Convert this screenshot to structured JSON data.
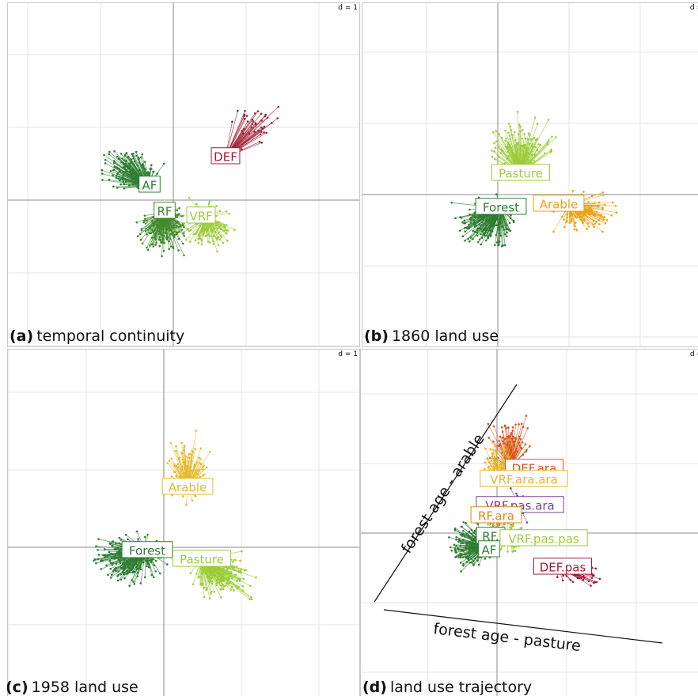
{
  "chart_data": [
    {
      "type": "scatter",
      "panel_letter": "(a)",
      "caption": "temporal continuity",
      "scale_label": "d = 1",
      "grid": true,
      "categories": [
        {
          "label": "AF",
          "color": "#2e7d32"
        },
        {
          "label": "DEF",
          "color": "#9e1b32"
        },
        {
          "label": "RF",
          "color": "#3f8a2a"
        },
        {
          "label": "VRF",
          "color": "#9ccc3b"
        }
      ]
    },
    {
      "type": "scatter",
      "panel_letter": "(b)",
      "caption": "1860 land use",
      "scale_label": "d =",
      "grid": true,
      "categories": [
        {
          "label": "Pasture",
          "color": "#9ccc3b"
        },
        {
          "label": "Forest",
          "color": "#2e7d32"
        },
        {
          "label": "Arable",
          "color": "#e8a21a"
        }
      ]
    },
    {
      "type": "scatter",
      "panel_letter": "(c)",
      "caption": "1958 land use",
      "scale_label": "d = 1",
      "grid": true,
      "categories": [
        {
          "label": "Arable",
          "color": "#e8b830"
        },
        {
          "label": "Forest",
          "color": "#2e7d32"
        },
        {
          "label": "Pasture",
          "color": "#9ccc3b"
        }
      ]
    },
    {
      "type": "scatter",
      "panel_letter": "(d)",
      "caption": "land use trajectory",
      "scale_label": "d =",
      "grid": true,
      "axis_annotations": [
        "forest age - arable",
        "forest age - pasture"
      ],
      "categories": [
        {
          "label": "DEF.ara",
          "color": "#d9541e"
        },
        {
          "label": "VRF.ara.ara",
          "color": "#e8b22e"
        },
        {
          "label": "VRF.pas.ara",
          "color": "#7b3f8f"
        },
        {
          "label": "RF.ara",
          "color": "#d9891e"
        },
        {
          "label": "RF.",
          "color": "#2e7d32"
        },
        {
          "label": "AF",
          "color": "#2e7d32"
        },
        {
          "label": "VRF.pas.pas",
          "color": "#9ccc3b"
        },
        {
          "label": "DEF.pas",
          "color": "#9e1b32"
        }
      ]
    }
  ]
}
